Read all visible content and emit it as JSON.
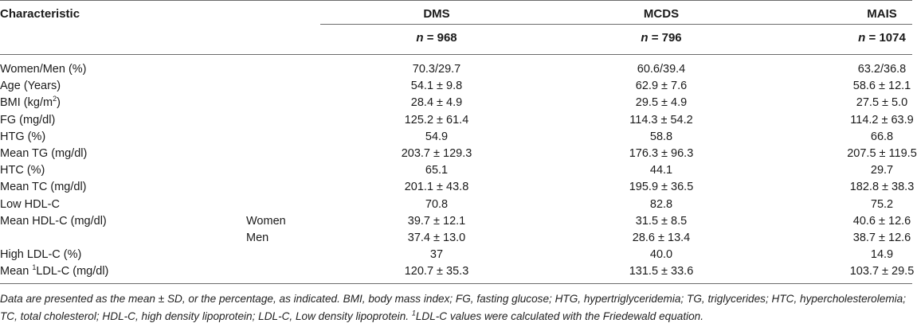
{
  "table": {
    "characteristic_header": "Characteristic",
    "columns": [
      {
        "name": "DMS",
        "n_symbol": "n",
        "n_value": "= 968"
      },
      {
        "name": "MCDS",
        "n_symbol": "n",
        "n_value": "= 796"
      },
      {
        "name": "MAIS",
        "n_symbol": "n",
        "n_value": "= 1074"
      }
    ],
    "rows": [
      {
        "label": "Women/Men (%)",
        "sub": "",
        "values": [
          "70.3/29.7",
          "60.6/39.4",
          "63.2/36.8"
        ]
      },
      {
        "label": "Age (Years)",
        "sub": "",
        "values": [
          "54.1 ± 9.8",
          "62.9 ± 7.6",
          "58.6 ± 12.1"
        ]
      },
      {
        "label": "BMI (kg/m",
        "label_sup": "2",
        "label_after": ")",
        "sub": "",
        "values": [
          "28.4 ± 4.9",
          "29.5 ± 4.9",
          "27.5 ± 5.0"
        ]
      },
      {
        "label": "FG (mg/dl)",
        "sub": "",
        "values": [
          "125.2 ± 61.4",
          "114.3 ± 54.2",
          "114.2 ± 63.9"
        ]
      },
      {
        "label": "HTG (%)",
        "sub": "",
        "values": [
          "54.9",
          "58.8",
          "66.8"
        ]
      },
      {
        "label": "Mean TG (mg/dl)",
        "sub": "",
        "values": [
          "203.7 ± 129.3",
          "176.3 ± 96.3",
          "207.5 ± 119.5"
        ]
      },
      {
        "label": "HTC (%)",
        "sub": "",
        "values": [
          "65.1",
          "44.1",
          "29.7"
        ]
      },
      {
        "label": "Mean TC (mg/dl)",
        "sub": "",
        "values": [
          "201.1 ± 43.8",
          "195.9 ± 36.5",
          "182.8 ± 38.3"
        ]
      },
      {
        "label": "Low HDL-C",
        "sub": "",
        "values": [
          "70.8",
          "82.8",
          "75.2"
        ]
      },
      {
        "label": "Mean HDL-C (mg/dl)",
        "sub": "Women",
        "values": [
          "39.7 ± 12.1",
          "31.5 ± 8.5",
          "40.6 ± 12.6"
        ]
      },
      {
        "label": "",
        "sub": "Men",
        "values": [
          "37.4 ± 13.0",
          "28.6 ± 13.4",
          "38.7 ± 12.6"
        ]
      },
      {
        "label": "High LDL-C (%)",
        "sub": "",
        "values": [
          "37",
          "40.0",
          "14.9"
        ]
      },
      {
        "label": "Mean ",
        "label_sup_pre": "1",
        "label_after": "LDL-C (mg/dl)",
        "sub": "",
        "values": [
          "120.7 ± 35.3",
          "131.5 ± 33.6",
          "103.7 ± 29.5"
        ]
      }
    ]
  },
  "footnote": {
    "text": "Data are presented as the mean ± SD, or the percentage, as indicated. BMI, body mass index; FG, fasting glucose; HTG, hypertriglyceridemia; TG, triglycerides; HTC, hypercholesterolemia; TC, total cholesterol; HDL-C, high density lipoprotein; LDL-C, Low density lipoprotein. ",
    "sup": "1",
    "text_after": "LDL-C values were calculated with the Friedewald equation."
  }
}
